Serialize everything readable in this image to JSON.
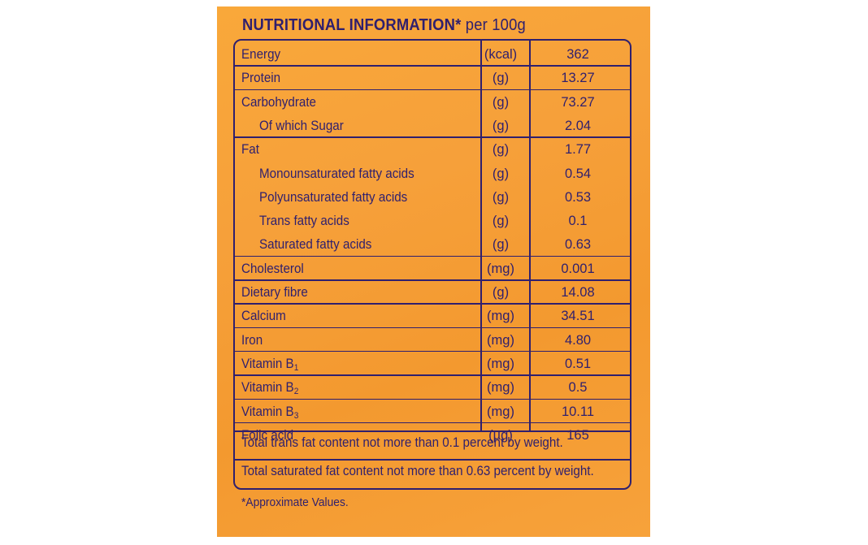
{
  "title": {
    "main": "NUTRITIONAL INFORMATION*",
    "per": "per 100g"
  },
  "rows": [
    {
      "name": "Energy",
      "unit": "(kcal)",
      "value": "362",
      "indent": false
    },
    {
      "name": "Protein",
      "unit": "(g)",
      "value": "13.27",
      "indent": false
    },
    {
      "name": "Carbohydrate",
      "unit": "(g)",
      "value": "73.27",
      "indent": false
    },
    {
      "name": "Of which Sugar",
      "unit": "(g)",
      "value": "2.04",
      "indent": true
    },
    {
      "name": "Fat",
      "unit": "(g)",
      "value": "1.77",
      "indent": false
    },
    {
      "name": "Monounsaturated fatty acids",
      "unit": "(g)",
      "value": "0.54",
      "indent": true
    },
    {
      "name": "Polyunsaturated fatty acids",
      "unit": "(g)",
      "value": "0.53",
      "indent": true
    },
    {
      "name": "Trans fatty acids",
      "unit": "(g)",
      "value": "0.1",
      "indent": true
    },
    {
      "name": "Saturated fatty acids",
      "unit": "(g)",
      "value": "0.63",
      "indent": true
    },
    {
      "name": "Cholesterol",
      "unit": "(mg)",
      "value": "0.001",
      "indent": false
    },
    {
      "name": "Dietary fibre",
      "unit": "(g)",
      "value": "14.08",
      "indent": false
    },
    {
      "name": "Calcium",
      "unit": "(mg)",
      "value": "34.51",
      "indent": false
    },
    {
      "name": "Iron",
      "unit": "(mg)",
      "value": "4.80",
      "indent": false
    },
    {
      "name": "Vitamin B",
      "sub": "1",
      "unit": "(mg)",
      "value": "0.51",
      "indent": false
    },
    {
      "name": "Vitamin B",
      "sub": "2",
      "unit": "(mg)",
      "value": "0.5",
      "indent": false
    },
    {
      "name": "Vitamin B",
      "sub": "3",
      "unit": "(mg)",
      "value": "10.11",
      "indent": false
    },
    {
      "name": "Folic acid",
      "unit": "(µg)",
      "value": "165",
      "indent": false
    }
  ],
  "notes": [
    "Total trans fat content not more than 0.1 percent by weight.",
    "Total saturated fat content not more than 0.63 percent by weight."
  ],
  "footnote": "*Approximate Values."
}
